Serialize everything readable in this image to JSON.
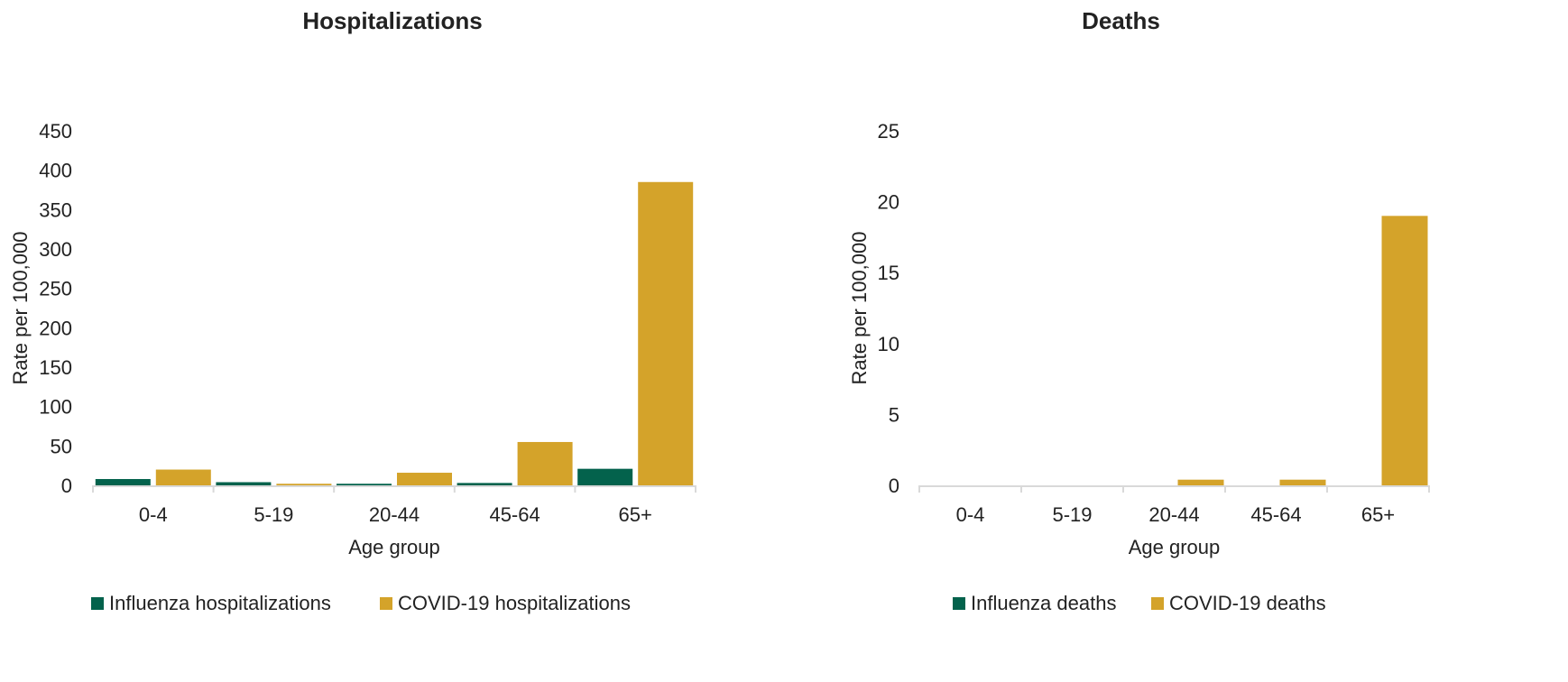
{
  "colors": {
    "influenza": "#03624c",
    "covid": "#d4a32a",
    "axis": "#d9d9d9"
  },
  "chart_data": [
    {
      "type": "bar",
      "title": "Hospitalizations",
      "xlabel": "Age group",
      "ylabel": "Rate per 100,000",
      "categories": [
        "0-4",
        "5-19",
        "20-44",
        "45-64",
        "65+"
      ],
      "ylim": [
        0,
        450
      ],
      "yticks": [
        0,
        50,
        100,
        150,
        200,
        250,
        300,
        350,
        400,
        450
      ],
      "grid": false,
      "legend_position": "bottom",
      "series": [
        {
          "name": "Influenza hospitalizations",
          "values": [
            8,
            4,
            2,
            3,
            21
          ]
        },
        {
          "name": "COVID-19 hospitalizations",
          "values": [
            20,
            2,
            16,
            55,
            385
          ]
        }
      ]
    },
    {
      "type": "bar",
      "title": "Deaths",
      "xlabel": "Age group",
      "ylabel": "Rate per 100,000",
      "categories": [
        "0-4",
        "5-19",
        "20-44",
        "45-64",
        "65+"
      ],
      "ylim": [
        0,
        25
      ],
      "yticks": [
        0,
        5,
        10,
        15,
        20,
        25
      ],
      "grid": false,
      "legend_position": "bottom",
      "series": [
        {
          "name": "Influenza deaths",
          "values": [
            0,
            0,
            0,
            0,
            0
          ]
        },
        {
          "name": "COVID-19 deaths",
          "values": [
            0,
            0,
            0.4,
            0.4,
            19
          ]
        }
      ]
    }
  ]
}
